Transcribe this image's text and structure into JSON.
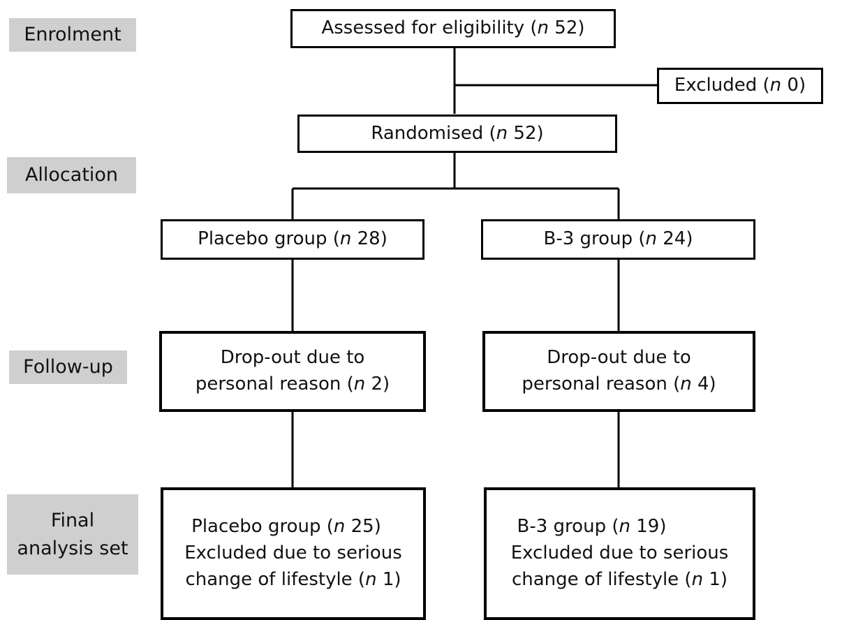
{
  "stages": {
    "enrolment": "Enrolment",
    "allocation": "Allocation",
    "follow_up": "Follow-up",
    "final_line1": "Final",
    "final_line2": "analysis set"
  },
  "nodes": {
    "assessed": {
      "text": "Assessed for eligibility (",
      "n": "n",
      "count": " 52)"
    },
    "excluded": {
      "text": "Excluded (",
      "n": "n",
      "count": " 0)"
    },
    "randomised": {
      "text": "Randomised (",
      "n": "n",
      "count": " 52)"
    },
    "placebo_group": {
      "text": "Placebo group (",
      "n": "n",
      "count": " 28)"
    },
    "b3_group": {
      "text": "B-3 group (",
      "n": "n",
      "count": " 24)"
    },
    "placebo_dropout": {
      "line1": "Drop-out due to",
      "line2_text": "personal reason (",
      "n": "n",
      "count": " 2)"
    },
    "b3_dropout": {
      "line1": "Drop-out  due to",
      "line2_text": "personal reason (",
      "n": "n",
      "count": " 4)"
    },
    "placebo_final": {
      "line1_text": "Placebo group (",
      "line1_n": "n",
      "line1_count": " 25)",
      "line2": "Excluded due to serious",
      "line3_text": "change of lifestyle (",
      "line3_n": "n",
      "line3_count": " 1)"
    },
    "b3_final": {
      "line1_text": "B-3 group (",
      "line1_n": "n",
      "line1_count": " 19)",
      "line2": "Excluded due to serious",
      "line3_text": "change of lifestyle (",
      "line3_n": "n",
      "line3_count": " 1)"
    }
  }
}
